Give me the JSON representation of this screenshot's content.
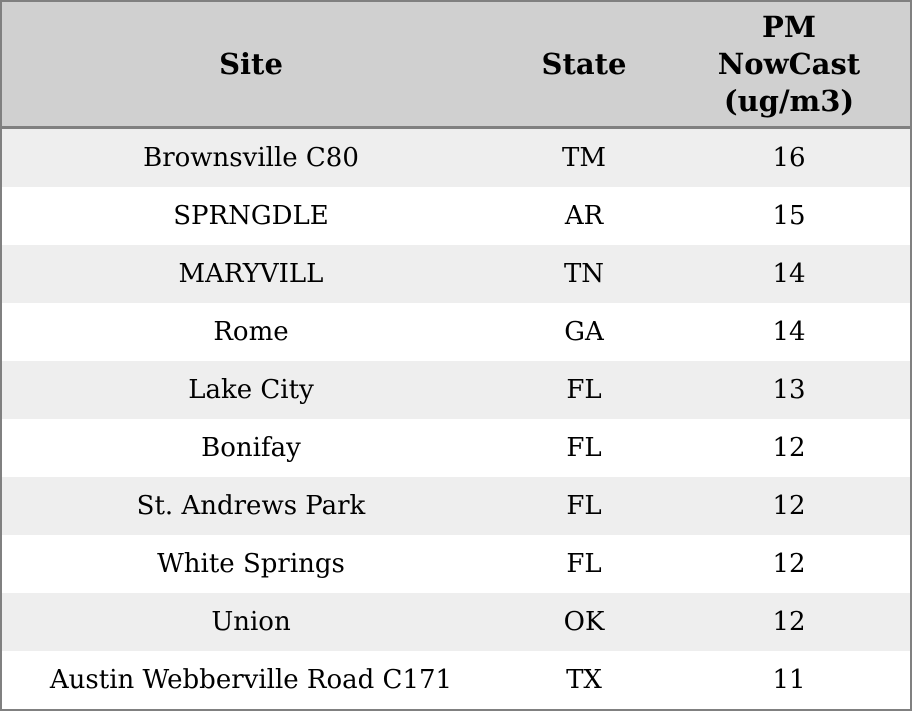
{
  "chart_data": {
    "type": "table",
    "columns": [
      "Site",
      "State",
      "PM NowCast (ug/m3)"
    ],
    "rows": [
      [
        "Brownsville C80",
        "TM",
        16
      ],
      [
        "SPRNGDLE",
        "AR",
        15
      ],
      [
        "MARYVILL",
        "TN",
        14
      ],
      [
        "Rome",
        "GA",
        14
      ],
      [
        "Lake City",
        "FL",
        13
      ],
      [
        "Bonifay",
        "FL",
        12
      ],
      [
        "St. Andrews Park",
        "FL",
        12
      ],
      [
        "White Springs",
        "FL",
        12
      ],
      [
        "Union",
        "OK",
        12
      ],
      [
        "Austin Webberville Road C171",
        "TX",
        11
      ]
    ]
  },
  "table": {
    "headers": {
      "site": "Site",
      "state": "State",
      "pm": "PM\nNowCast\n(ug/m3)"
    },
    "rows": [
      {
        "site": "Brownsville C80",
        "state": "TM",
        "pm": "16"
      },
      {
        "site": "SPRNGDLE",
        "state": "AR",
        "pm": "15"
      },
      {
        "site": "MARYVILL",
        "state": "TN",
        "pm": "14"
      },
      {
        "site": "Rome",
        "state": "GA",
        "pm": "14"
      },
      {
        "site": "Lake City",
        "state": "FL",
        "pm": "13"
      },
      {
        "site": "Bonifay",
        "state": "FL",
        "pm": "12"
      },
      {
        "site": "St. Andrews Park",
        "state": "FL",
        "pm": "12"
      },
      {
        "site": "White Springs",
        "state": "FL",
        "pm": "12"
      },
      {
        "site": "Union",
        "state": "OK",
        "pm": "12"
      },
      {
        "site": "Austin Webberville Road C171",
        "state": "TX",
        "pm": "11"
      }
    ]
  },
  "colors": {
    "header_bg": "#d0d0d0",
    "row_stripe_bg": "#eeeeee",
    "row_bg": "#ffffff",
    "border": "#808080",
    "text": "#000000"
  }
}
